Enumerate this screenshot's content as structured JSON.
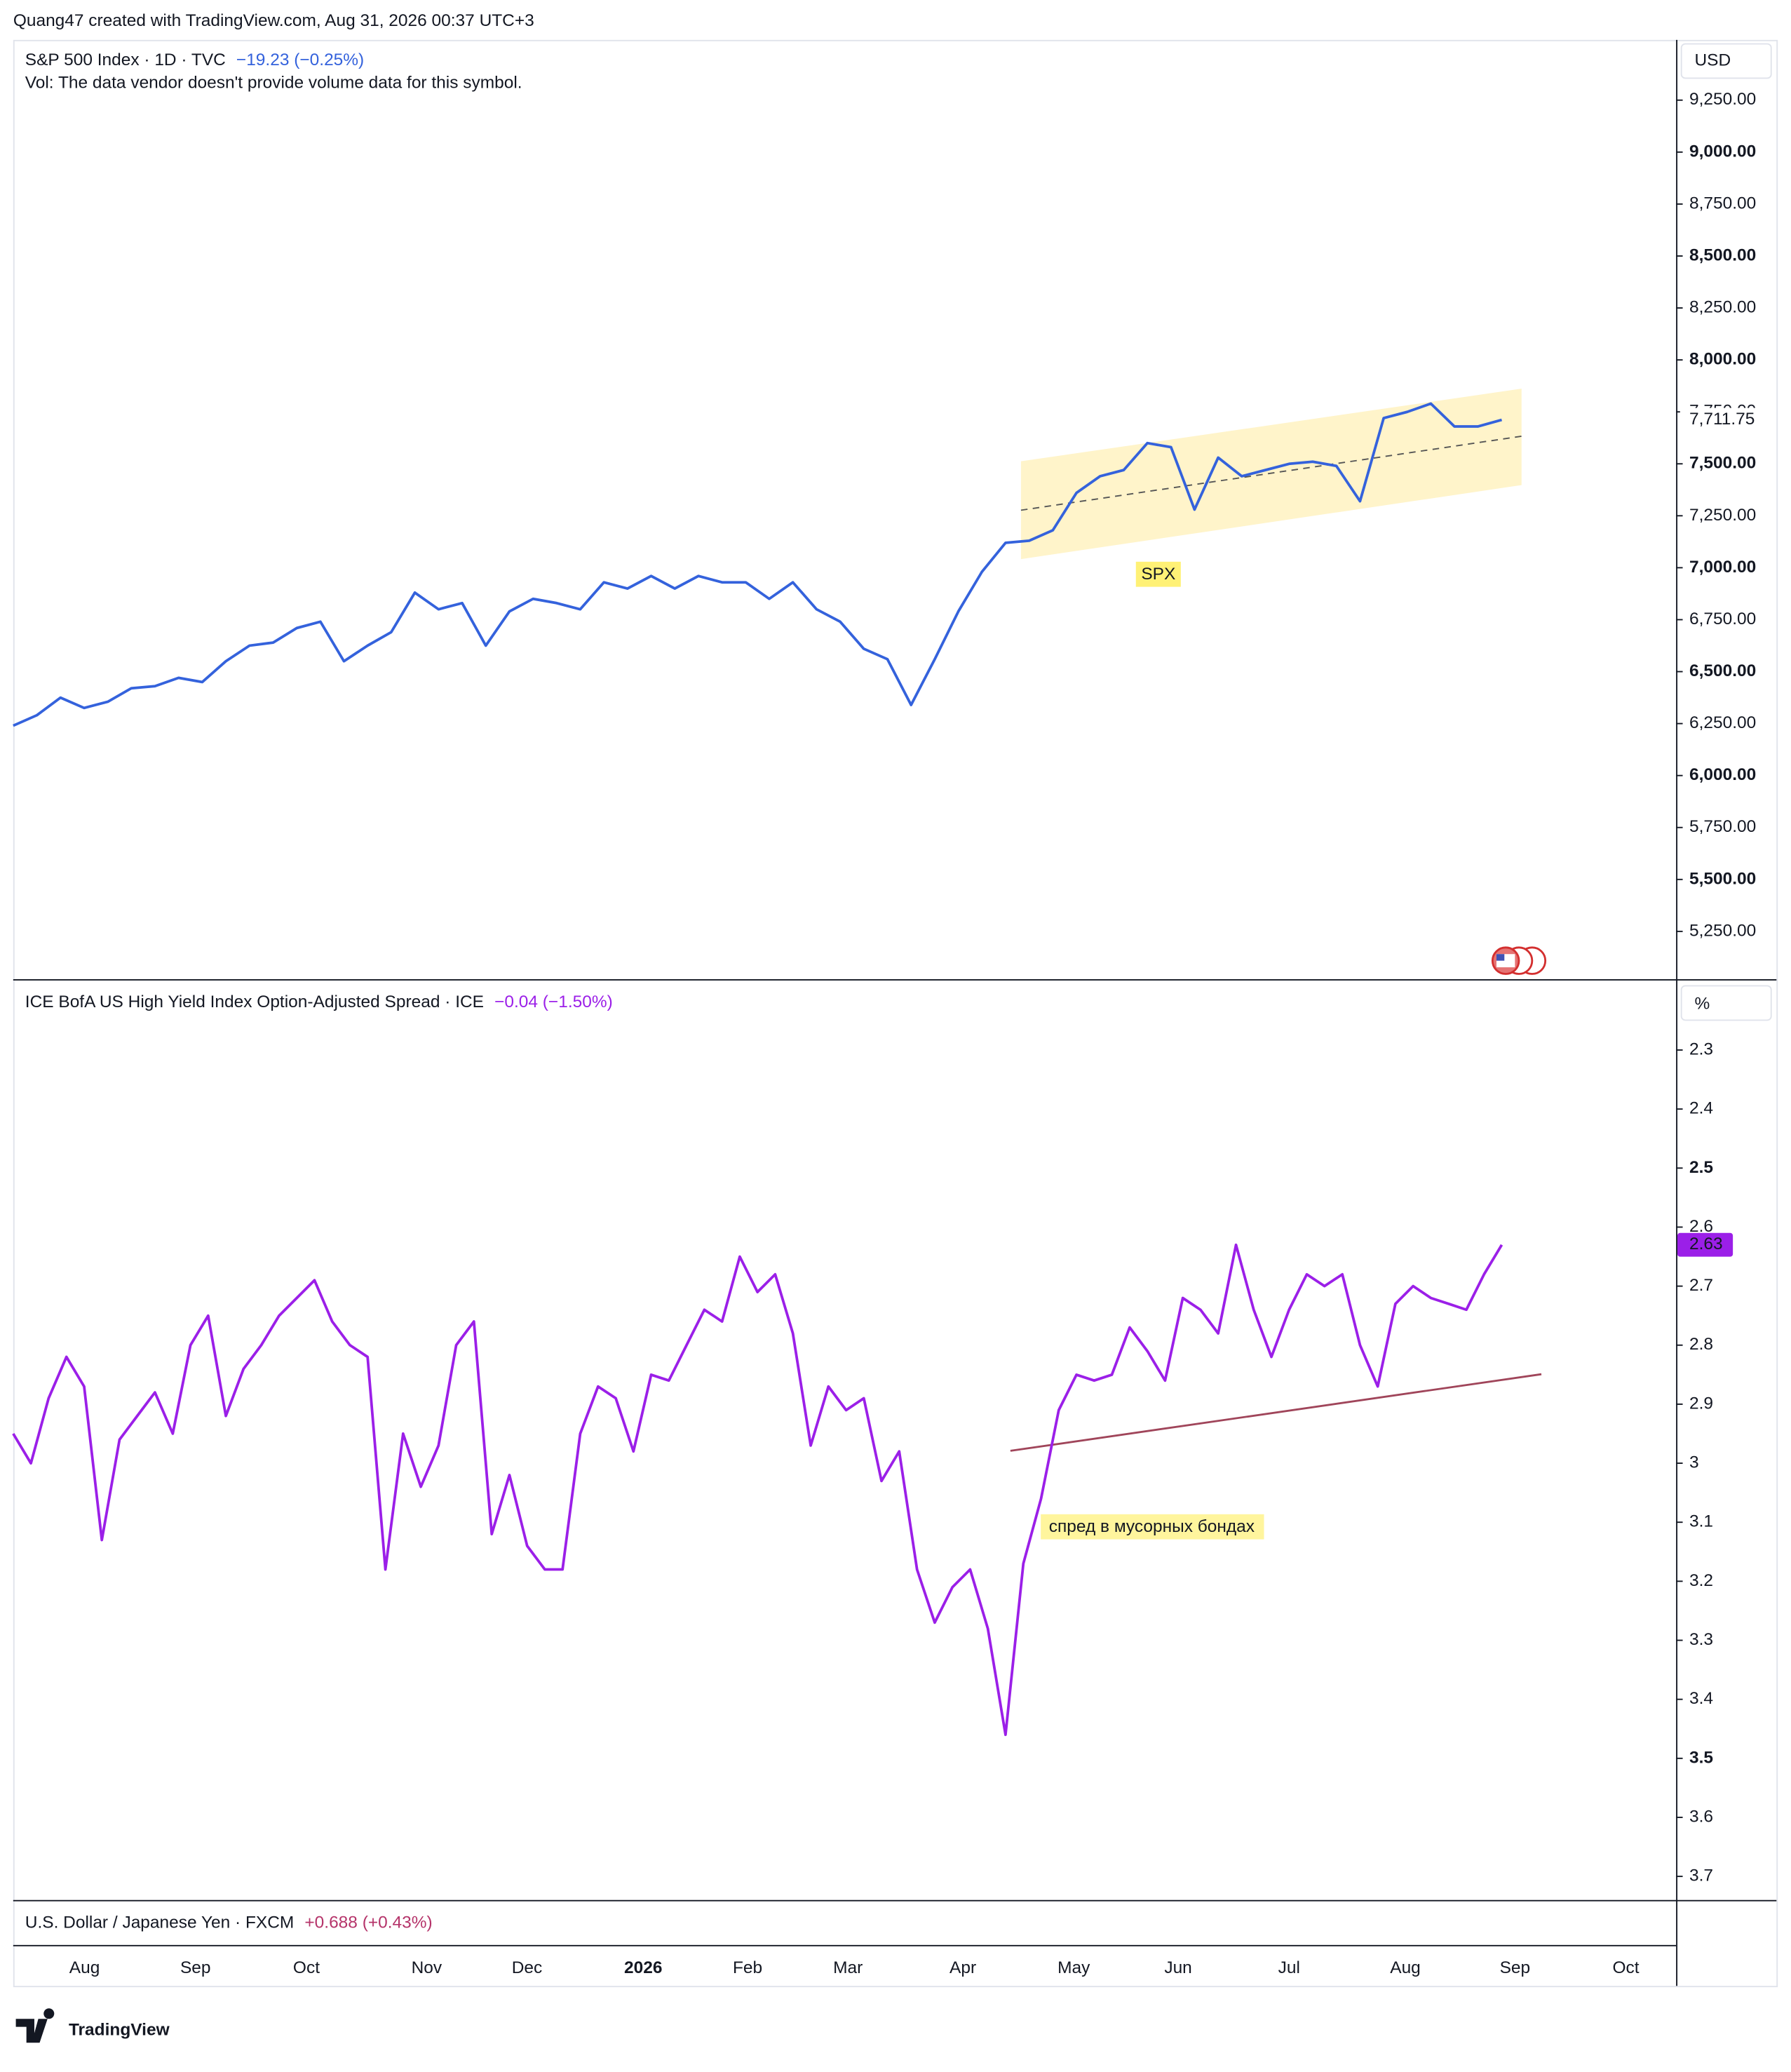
{
  "header": "Quang47 created with TradingView.com, Aug 31, 2026 00:37 UTC+3",
  "brand": "TradingView",
  "x_labels": [
    "Aug",
    "Sep",
    "Oct",
    "Nov",
    "Dec",
    "2026",
    "Feb",
    "Mar",
    "Apr",
    "May",
    "Jun",
    "Jul",
    "Aug",
    "Sep",
    "Oct"
  ],
  "chart_data": [
    {
      "type": "line",
      "title": "S&P 500 Index · 1D · TVC",
      "change": "−19.23 (−0.25%)",
      "subtitle": "Vol: The data vendor doesn't provide volume data for this symbol.",
      "unit": "USD",
      "color": "#3462dc",
      "annotation": "SPX",
      "ylim": [
        5020,
        9540
      ],
      "yticks": [
        {
          "value": 5250,
          "label": "5,250.00"
        },
        {
          "value": 5500,
          "label": "5,500.00"
        },
        {
          "value": 5750,
          "label": "5,750.00"
        },
        {
          "value": 6000,
          "label": "6,000.00"
        },
        {
          "value": 6250,
          "label": "6,250.00"
        },
        {
          "value": 6500,
          "label": "6,500.00"
        },
        {
          "value": 6750,
          "label": "6,750.00"
        },
        {
          "value": 7000,
          "label": "7,000.00"
        },
        {
          "value": 7250,
          "label": "7,250.00"
        },
        {
          "value": 7500,
          "label": "7,500.00"
        },
        {
          "value": 7750,
          "label": "7,750.00"
        },
        {
          "value": 8000,
          "label": "8,000.00"
        },
        {
          "value": 8250,
          "label": "8,250.00"
        },
        {
          "value": 8500,
          "label": "8,500.00"
        },
        {
          "value": 8750,
          "label": "8,750.00"
        },
        {
          "value": 9000,
          "label": "9,000.00"
        },
        {
          "value": 9250,
          "label": "9,250.00"
        }
      ],
      "values": [
        6240,
        6290,
        6375,
        6325,
        6355,
        6420,
        6430,
        6470,
        6450,
        6550,
        6625,
        6640,
        6710,
        6740,
        6550,
        6625,
        6690,
        6880,
        6800,
        6830,
        6625,
        6790,
        6850,
        6830,
        6800,
        6930,
        6900,
        6960,
        6900,
        6960,
        6930,
        6930,
        6850,
        6930,
        6800,
        6740,
        6610,
        6560,
        6340,
        6560,
        6790,
        6980,
        7120,
        7130,
        7180,
        7360,
        7440,
        7470,
        7600,
        7580,
        7280,
        7530,
        7440,
        7470,
        7500,
        7510,
        7490,
        7320,
        7720,
        7750,
        7790,
        7680,
        7680,
        7711.75
      ],
      "last_label": "7,711.75"
    },
    {
      "type": "line",
      "title": "ICE BofA US High Yield Index Option-Adjusted Spread · ICE",
      "change": "−0.04 (−1.50%)",
      "unit": "%",
      "color": "#9b1fe8",
      "inverted": true,
      "annotation": "спред в мусорных бондах",
      "ylim": [
        2.18,
        3.74
      ],
      "yticks": [
        2.3,
        2.4,
        2.5,
        2.6,
        2.7,
        2.8,
        2.9,
        3,
        3.1,
        3.2,
        3.3,
        3.4,
        3.5,
        3.6,
        3.7
      ],
      "values": [
        2.95,
        3.0,
        2.89,
        2.82,
        2.87,
        3.13,
        2.96,
        2.92,
        2.88,
        2.95,
        2.8,
        2.75,
        2.92,
        2.84,
        2.8,
        2.75,
        2.72,
        2.69,
        2.76,
        2.8,
        2.82,
        3.18,
        2.95,
        3.04,
        2.97,
        2.8,
        2.76,
        3.12,
        3.02,
        3.14,
        3.18,
        3.18,
        2.95,
        2.87,
        2.89,
        2.98,
        2.85,
        2.86,
        2.8,
        2.74,
        2.76,
        2.65,
        2.71,
        2.68,
        2.78,
        2.97,
        2.87,
        2.91,
        2.89,
        3.03,
        2.98,
        3.18,
        3.27,
        3.21,
        3.18,
        3.28,
        3.46,
        3.17,
        3.06,
        2.91,
        2.85,
        2.86,
        2.85,
        2.77,
        2.81,
        2.86,
        2.72,
        2.74,
        2.78,
        2.63,
        2.74,
        2.82,
        2.74,
        2.68,
        2.7,
        2.68,
        2.8,
        2.87,
        2.73,
        2.7,
        2.72,
        2.73,
        2.74,
        2.68,
        2.63
      ]
    },
    {
      "type": "line",
      "title": "U.S. Dollar / Japanese Yen · FXCM",
      "change": "+0.688 (+0.43%)",
      "color": "#b5346a"
    }
  ]
}
